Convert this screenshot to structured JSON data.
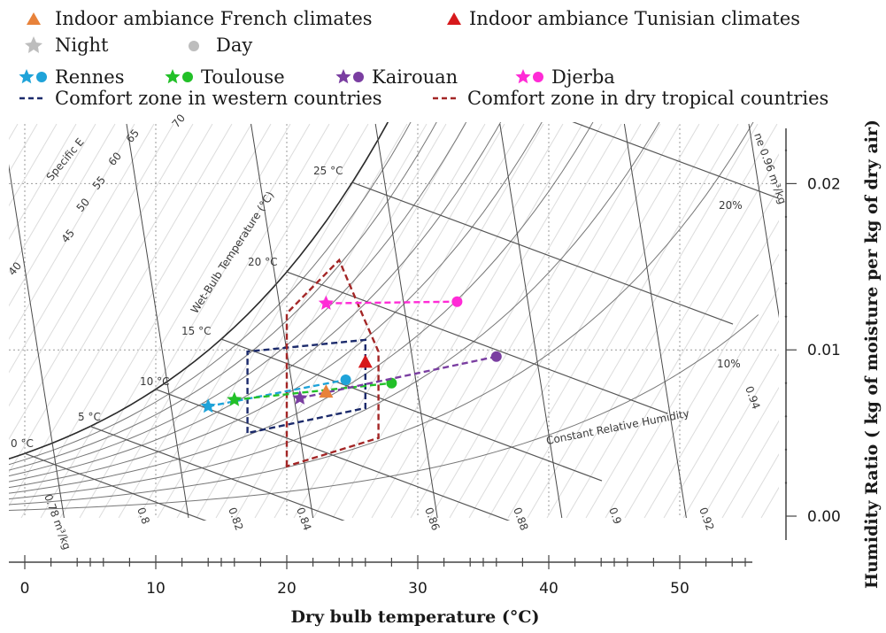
{
  "chart_data": {
    "type": "scatter",
    "xlabel": "Dry bulb temperature (°C)",
    "ylabel": "Humidity Ratio ( kg of moisture per kg of dry air)",
    "xlim": [
      -2,
      56
    ],
    "ylim": [
      -0.001,
      0.0235
    ],
    "x_ticks": [
      "0",
      "10",
      "20",
      "30",
      "40",
      "50"
    ],
    "y_ticks": [
      "0.00",
      "0.01",
      "0.02"
    ],
    "legend": {
      "placement": "top",
      "items": [
        {
          "label": "Indoor ambiance French climates",
          "marker": "triangle",
          "color": "#e8823a"
        },
        {
          "label": "Indoor ambiance Tunisian climates",
          "marker": "triangle",
          "color": "#d7191c"
        },
        {
          "label": "Night",
          "marker": "star",
          "color": "#bdbdbd"
        },
        {
          "label": "Day",
          "marker": "circle",
          "color": "#bdbdbd"
        },
        {
          "label": "Rennes",
          "marker": "star-circle",
          "color": "#1fa3d9"
        },
        {
          "label": "Toulouse",
          "marker": "star-circle",
          "color": "#22c028"
        },
        {
          "label": "Kairouan",
          "marker": "star-circle",
          "color": "#7a3ea1"
        },
        {
          "label": "Djerba",
          "marker": "star-circle",
          "color": "#ff2bd6"
        },
        {
          "label": "Comfort zone in western countries",
          "marker": "dashed-line",
          "color": "#1b2a6b"
        },
        {
          "label": "Comfort zone in dry tropical countries",
          "marker": "dashed-line",
          "color": "#a32626"
        }
      ]
    },
    "series": [
      {
        "name": "Rennes",
        "color": "#1fa3d9",
        "night": {
          "x": 14,
          "y": 0.0066
        },
        "day": {
          "x": 24.5,
          "y": 0.0082
        }
      },
      {
        "name": "Toulouse",
        "color": "#22c028",
        "night": {
          "x": 16,
          "y": 0.007
        },
        "day": {
          "x": 28,
          "y": 0.008
        }
      },
      {
        "name": "Kairouan",
        "color": "#7a3ea1",
        "night": {
          "x": 21,
          "y": 0.0071
        },
        "day": {
          "x": 36,
          "y": 0.0096
        }
      },
      {
        "name": "Djerba",
        "color": "#ff2bd6",
        "night": {
          "x": 23,
          "y": 0.0128
        },
        "day": {
          "x": 33,
          "y": 0.0129
        }
      }
    ],
    "indoor_points": [
      {
        "name": "Indoor ambiance French climates",
        "x": 23,
        "y": 0.0075,
        "color": "#e8823a"
      },
      {
        "name": "Indoor ambiance Tunisian climates",
        "x": 26,
        "y": 0.0093,
        "color": "#d7191c"
      }
    ],
    "comfort_zones": [
      {
        "name": "Comfort zone in western countries",
        "color": "#1b2a6b",
        "polygon": [
          [
            17,
            0.005
          ],
          [
            17,
            0.0099
          ],
          [
            26,
            0.0106
          ],
          [
            26,
            0.0065
          ]
        ]
      },
      {
        "name": "Comfort zone in dry tropical countries",
        "color": "#a32626",
        "polygon": [
          [
            20,
            0.003
          ],
          [
            20,
            0.0122
          ],
          [
            24,
            0.0154
          ],
          [
            26,
            0.0117
          ],
          [
            27,
            0.0099
          ],
          [
            27,
            0.0047
          ]
        ]
      }
    ],
    "chart_labels": {
      "wet_bulb_title": "Wet-Bulb Temperature (°C)",
      "specific_enthalpy": "Specific E",
      "constant_rh": "Constant Relative Humidity",
      "wb_labels": [
        "0 °C",
        "5 °C",
        "10 °C",
        "15 °C",
        "20 °C",
        "25 °C"
      ],
      "rh_labels": [
        "10%",
        "20%"
      ],
      "volume_labels": [
        "0.78 m³/kg",
        "0.8",
        "0.82",
        "0.84",
        "0.86",
        "0.88",
        "0.9",
        "0.92",
        "0.94",
        "ne 0.96 m³/kg"
      ],
      "enthalpy_ticks": [
        "40",
        "45",
        "50",
        "55",
        "60",
        "65",
        "70"
      ]
    }
  }
}
